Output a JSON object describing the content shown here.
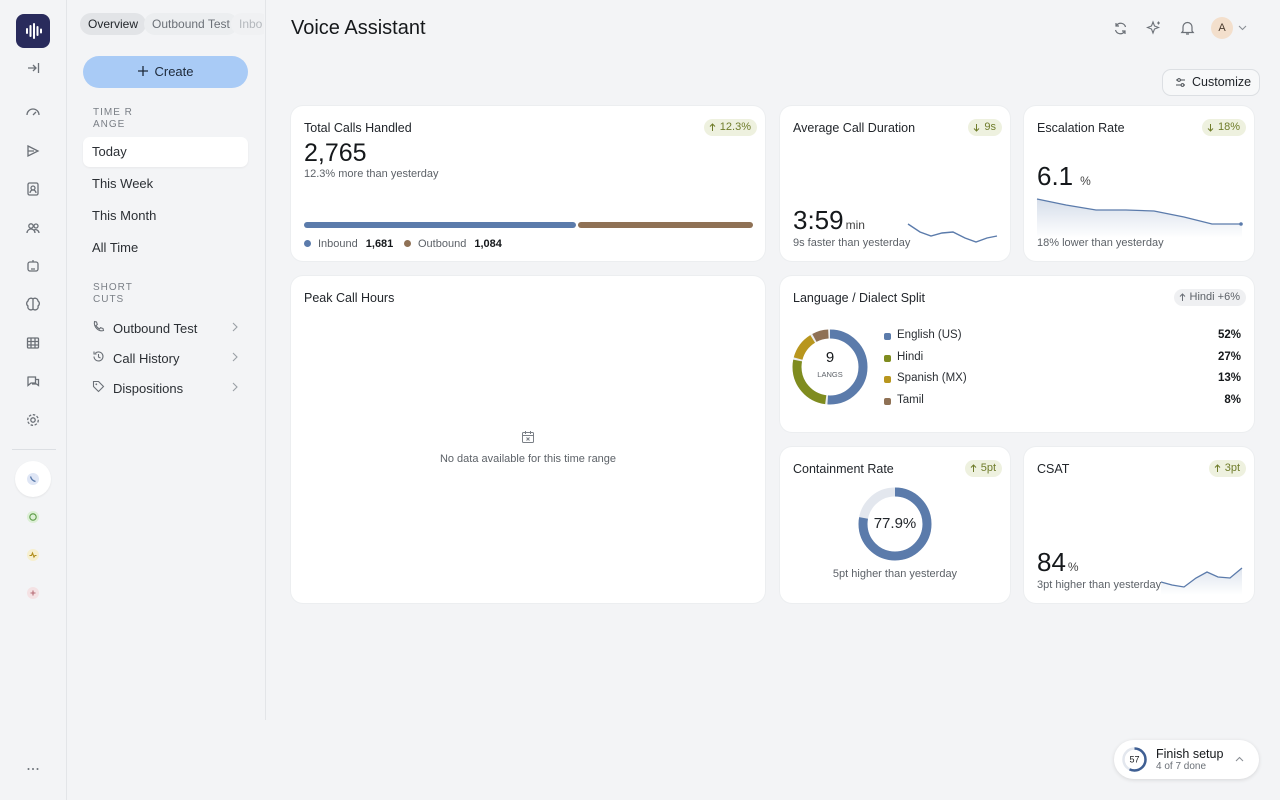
{
  "tabs": [
    "Overview",
    "Outbound Test",
    "Inbo"
  ],
  "sidebar": {
    "create": "Create",
    "time_range_label": "TIME RANGE",
    "time_ranges": [
      "Today",
      "This Week",
      "This Month",
      "All Time"
    ],
    "shortcuts_label": "SHORTCUTS",
    "shortcuts": [
      "Outbound Test",
      "Call History",
      "Dispositions"
    ]
  },
  "header": {
    "title": "Voice Assistant",
    "avatar": "A",
    "customize": "Customize"
  },
  "cards": {
    "total_calls": {
      "title": "Total Calls Handled",
      "badge": "12.3%",
      "value": "2,765",
      "note": "12.3% more than yesterday",
      "split": [
        {
          "name": "Inbound",
          "value": 1681,
          "label": "1,681",
          "color": "#5b7bab"
        },
        {
          "name": "Outbound",
          "value": 1084,
          "label": "1,084",
          "color": "#8f7155"
        }
      ]
    },
    "avg_duration": {
      "title": "Average Call Duration",
      "badge": "9s",
      "value": "3:59",
      "unit": "min",
      "note": "9s faster than yesterday"
    },
    "escalation": {
      "title": "Escalation Rate",
      "badge": "18%",
      "value": "6.1",
      "unit": "%",
      "note": "18% lower than yesterday"
    },
    "peak_hours": {
      "title": "Peak Call Hours",
      "empty": "No data available for this time range"
    },
    "language": {
      "title": "Language / Dialect Split",
      "badge": "Hindi +6%",
      "center_value": "9",
      "center_label": "LANGS",
      "items": [
        {
          "name": "English (US)",
          "value": 52,
          "label": "52%",
          "color": "#5b7bab"
        },
        {
          "name": "Hindi",
          "value": 27,
          "label": "27%",
          "color": "#7f8c1f"
        },
        {
          "name": "Spanish (MX)",
          "value": 13,
          "label": "13%",
          "color": "#b8961e"
        },
        {
          "name": "Tamil",
          "value": 8,
          "label": "8%",
          "color": "#8f7155"
        }
      ]
    },
    "containment": {
      "title": "Containment Rate",
      "badge": "5pt",
      "value": 77.9,
      "label": "77.9%",
      "note": "5pt higher than yesterday",
      "color": "#5b7bab"
    },
    "csat": {
      "title": "CSAT",
      "badge": "3pt",
      "value": "84",
      "unit": "%",
      "note": "3pt higher than yesterday"
    }
  },
  "setup": {
    "progress": "57",
    "title": "Finish setup",
    "subtitle": "4 of 7 done"
  }
}
